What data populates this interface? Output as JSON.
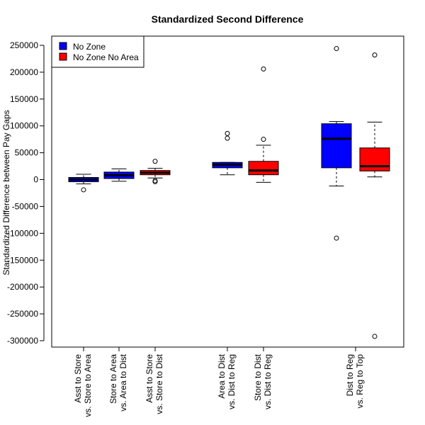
{
  "chart_data": {
    "type": "box",
    "title": "Standardized Second Difference",
    "xlabel": "",
    "ylabel": "Standardized Difference between Pay Gaps",
    "ylim": [
      -315000,
      270000
    ],
    "yticks": [
      250000,
      200000,
      150000,
      100000,
      50000,
      0,
      -50000,
      -100000,
      -150000,
      -200000,
      -250000,
      -300000
    ],
    "ytick_labels": [
      "250000",
      "200000",
      "150000",
      "100000",
      "50000",
      "0",
      "-50000",
      "-100000",
      "-150000",
      "-200000",
      "-250000",
      "-300000"
    ],
    "legend": {
      "placement": "top-left",
      "entries": [
        {
          "name": "No Zone",
          "color": "#0000ff"
        },
        {
          "name": "No Zone No Area",
          "color": "#ff0000"
        }
      ]
    },
    "category_labels": [
      {
        "line1": "Asst to Store",
        "line2": "vs. Store to Area"
      },
      {
        "line1": "Store to Area",
        "line2": "vs. Area to Dist"
      },
      {
        "line1": "Asst to Store",
        "line2": "vs. Store to Dist"
      },
      {
        "line1": "Area to Dist",
        "line2": "vs. Dist to Reg"
      },
      {
        "line1": "Store to Dist",
        "line2": "vs. Dist to Reg"
      },
      {
        "line1": "Dist to Reg",
        "line2": "vs. Reg to Top"
      }
    ],
    "boxes": [
      {
        "category": 0,
        "series": "No Zone",
        "color": "#0000ff",
        "whisker_low": -8000,
        "q1": -4000,
        "median": 0,
        "q3": 4000,
        "whisker_high": 10000,
        "outliers": [
          -19000
        ]
      },
      {
        "category": 1,
        "series": "No Zone",
        "color": "#0000ff",
        "whisker_low": -3000,
        "q1": 2000,
        "median": 8000,
        "q3": 14000,
        "whisker_high": 20000,
        "outliers": []
      },
      {
        "category": 2,
        "series": "No Zone No Area",
        "color": "#ff0000",
        "whisker_low": 3000,
        "q1": 9000,
        "median": 13000,
        "q3": 17000,
        "whisker_high": 21000,
        "outliers": [
          34000,
          -2000,
          -4000
        ]
      },
      {
        "category": 3,
        "series": "No Zone",
        "color": "#0000ff",
        "whisker_low": 9000,
        "q1": 22000,
        "median": 28000,
        "q3": 32000,
        "whisker_high": 32000,
        "outliers": [
          86000,
          77000
        ]
      },
      {
        "category": 4,
        "series": "No Zone No Area",
        "color": "#ff0000",
        "whisker_low": -5000,
        "q1": 9000,
        "median": 17000,
        "q3": 34000,
        "whisker_high": 64000,
        "outliers": [
          206000,
          75000
        ]
      },
      {
        "category": 5,
        "series": "No Zone",
        "color": "#0000ff",
        "whisker_low": -12000,
        "q1": 22000,
        "median": 76000,
        "q3": 104000,
        "whisker_high": 108000,
        "outliers": [
          244000,
          -109000
        ]
      },
      {
        "category": 5,
        "series": "No Zone No Area",
        "color": "#ff0000",
        "whisker_low": 5000,
        "q1": 16000,
        "median": 25000,
        "q3": 59000,
        "whisker_high": 107000,
        "outliers": [
          232000,
          -292000
        ]
      }
    ]
  }
}
